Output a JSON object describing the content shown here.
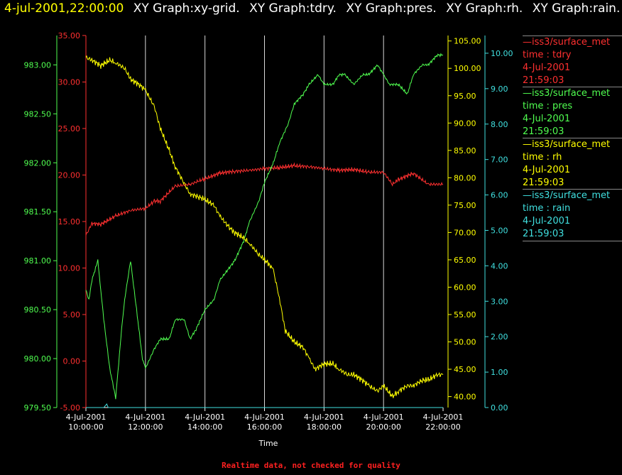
{
  "header": {
    "datetime": "4-jul-2001,22:00:00",
    "graphs": [
      "XY Graph:xy-grid.",
      "XY Graph:tdry.",
      "XY Graph:pres.",
      "XY Graph:rh.",
      "XY Graph:rain."
    ]
  },
  "footer": "Realtime data, not checked for quality",
  "colors": {
    "tdry": "#ff3030",
    "pres": "#50ff50",
    "rh": "#ffff00",
    "rain": "#40e0e0",
    "grid": "#ffffff"
  },
  "legend": [
    {
      "source": "—iss3/surface_met",
      "var": "time : tdry",
      "date": "4-Jul-2001",
      "time": "21:59:03",
      "color": "#ff3030"
    },
    {
      "source": "—iss3/surface_met",
      "var": "time : pres",
      "date": "4-Jul-2001",
      "time": "21:59:03",
      "color": "#50ff50"
    },
    {
      "source": "—iss3/surface_met",
      "var": "time : rh",
      "date": "4-Jul-2001",
      "time": "21:59:03",
      "color": "#ffff00"
    },
    {
      "source": "—iss3/surface_met",
      "var": "time : rain",
      "date": "4-Jul-2001",
      "time": "21:59:03",
      "color": "#40e0e0"
    }
  ],
  "chart_data": {
    "type": "line",
    "xlabel": "Time",
    "x_ticks": [
      {
        "date": "4-Jul-2001",
        "time": "10:00:00",
        "h": 10
      },
      {
        "date": "4-Jul-2001",
        "time": "12:00:00",
        "h": 12
      },
      {
        "date": "4-Jul-2001",
        "time": "14:00:00",
        "h": 14
      },
      {
        "date": "4-Jul-2001",
        "time": "16:00:00",
        "h": 16
      },
      {
        "date": "4-Jul-2001",
        "time": "18:00:00",
        "h": 18
      },
      {
        "date": "4-Jul-2001",
        "time": "20:00:00",
        "h": 20
      },
      {
        "date": "4-Jul-2001",
        "time": "22:00:00",
        "h": 22
      }
    ],
    "xlim": [
      10,
      22
    ],
    "grid": true,
    "axes": {
      "pres": {
        "ylim": [
          979.5,
          983.3
        ],
        "ticks": [
          "979.50",
          "980.00",
          "980.50",
          "981.00",
          "981.50",
          "982.00",
          "982.50",
          "983.00"
        ],
        "tick_values": [
          979.5,
          980,
          980.5,
          981,
          981.5,
          982,
          982.5,
          983
        ]
      },
      "tdry": {
        "ylim": [
          -5,
          35
        ],
        "ticks": [
          "-5.00",
          "0.00",
          "5.00",
          "10.00",
          "15.00",
          "20.00",
          "25.00",
          "30.00",
          "35.00"
        ],
        "tick_values": [
          -5,
          0,
          5,
          10,
          15,
          20,
          25,
          30,
          35
        ]
      },
      "rh": {
        "ylim": [
          38,
          106
        ],
        "ticks": [
          "40.00",
          "45.00",
          "50.00",
          "55.00",
          "60.00",
          "65.00",
          "70.00",
          "75.00",
          "80.00",
          "85.00",
          "90.00",
          "95.00",
          "100.00",
          "105.00"
        ],
        "tick_values": [
          40,
          45,
          50,
          55,
          60,
          65,
          70,
          75,
          80,
          85,
          90,
          95,
          100,
          105
        ]
      },
      "rain": {
        "ylim": [
          0,
          10.5
        ],
        "ticks": [
          "0.00",
          "1.00",
          "2.00",
          "3.00",
          "4.00",
          "5.00",
          "6.00",
          "7.00",
          "8.00",
          "9.00",
          "10.00"
        ],
        "tick_values": [
          0,
          1,
          2,
          3,
          4,
          5,
          6,
          7,
          8,
          9,
          10
        ]
      }
    },
    "series": [
      {
        "key": "tdry",
        "x": [
          10,
          10.2,
          10.5,
          11,
          11.5,
          12,
          12.3,
          12.5,
          13,
          13.5,
          14,
          14.5,
          15,
          15.5,
          16,
          16.5,
          17,
          17.5,
          18,
          18.5,
          19,
          19.5,
          20,
          20.3,
          20.5,
          21,
          21.5,
          22
        ],
        "values": [
          13.5,
          14.8,
          14.7,
          15.6,
          16.2,
          16.4,
          17.2,
          17.2,
          18.8,
          19.0,
          19.6,
          20.2,
          20.4,
          20.5,
          20.7,
          20.8,
          21.0,
          20.9,
          20.7,
          20.5,
          20.6,
          20.3,
          20.3,
          19.0,
          19.5,
          20.2,
          19.0,
          19.0
        ]
      },
      {
        "key": "pres",
        "x": [
          10,
          10.1,
          10.2,
          10.4,
          10.5,
          10.6,
          10.8,
          11.0,
          11.2,
          11.3,
          11.5,
          11.7,
          11.9,
          12.0,
          12.3,
          12.5,
          12.8,
          13.0,
          13.3,
          13.5,
          13.7,
          14.0,
          14.3,
          14.5,
          15.0,
          15.3,
          15.5,
          15.8,
          16.0,
          16.3,
          16.5,
          16.8,
          17.0,
          17.3,
          17.5,
          17.8,
          18.0,
          18.3,
          18.5,
          18.7,
          19.0,
          19.3,
          19.5,
          19.8,
          20.0,
          20.2,
          20.5,
          20.8,
          21.0,
          21.3,
          21.5,
          21.8,
          22.0
        ],
        "values": [
          980.7,
          980.6,
          980.8,
          981.0,
          980.7,
          980.4,
          979.9,
          979.6,
          980.3,
          980.6,
          981.0,
          980.5,
          980.0,
          979.9,
          980.1,
          980.2,
          980.2,
          980.4,
          980.4,
          980.2,
          980.3,
          980.5,
          980.6,
          980.8,
          981.0,
          981.2,
          981.4,
          981.6,
          981.8,
          982.0,
          982.2,
          982.4,
          982.6,
          982.7,
          982.8,
          982.9,
          982.8,
          982.8,
          982.9,
          982.9,
          982.8,
          982.9,
          982.9,
          983.0,
          982.9,
          982.8,
          982.8,
          982.7,
          982.9,
          983.0,
          983.0,
          983.1,
          983.1
        ]
      },
      {
        "key": "rh",
        "x": [
          10,
          10.2,
          10.5,
          10.8,
          11,
          11.3,
          11.5,
          11.8,
          12,
          12.3,
          12.5,
          12.8,
          13,
          13.3,
          13.5,
          13.8,
          14,
          14.3,
          14.5,
          14.8,
          15,
          15.3,
          15.5,
          15.8,
          16,
          16.2,
          16.3,
          16.5,
          16.7,
          17,
          17.3,
          17.5,
          17.7,
          18,
          18.3,
          18.5,
          18.8,
          19,
          19.3,
          19.5,
          19.8,
          20,
          20.3,
          20.5,
          20.8,
          21,
          21.3,
          21.5,
          21.8,
          22
        ],
        "values": [
          102,
          101.5,
          100.5,
          101.5,
          101,
          100,
          98,
          97,
          96,
          93,
          89,
          85,
          82,
          79,
          77,
          76.5,
          76,
          75,
          73,
          71,
          70,
          69,
          68,
          66,
          65,
          64,
          63,
          58,
          52,
          50,
          49,
          47,
          45,
          46,
          46,
          45,
          44,
          44,
          43,
          42,
          41,
          42,
          40,
          41,
          42,
          42,
          43,
          43,
          44,
          44
        ]
      },
      {
        "key": "rain",
        "x": [
          10,
          10.5,
          10.6,
          10.7,
          10.75,
          10.8,
          11,
          12,
          14,
          16,
          18,
          20,
          22
        ],
        "values": [
          0,
          0,
          0,
          0.1,
          0,
          0,
          0,
          0,
          0,
          0,
          0,
          0,
          0
        ]
      }
    ]
  }
}
